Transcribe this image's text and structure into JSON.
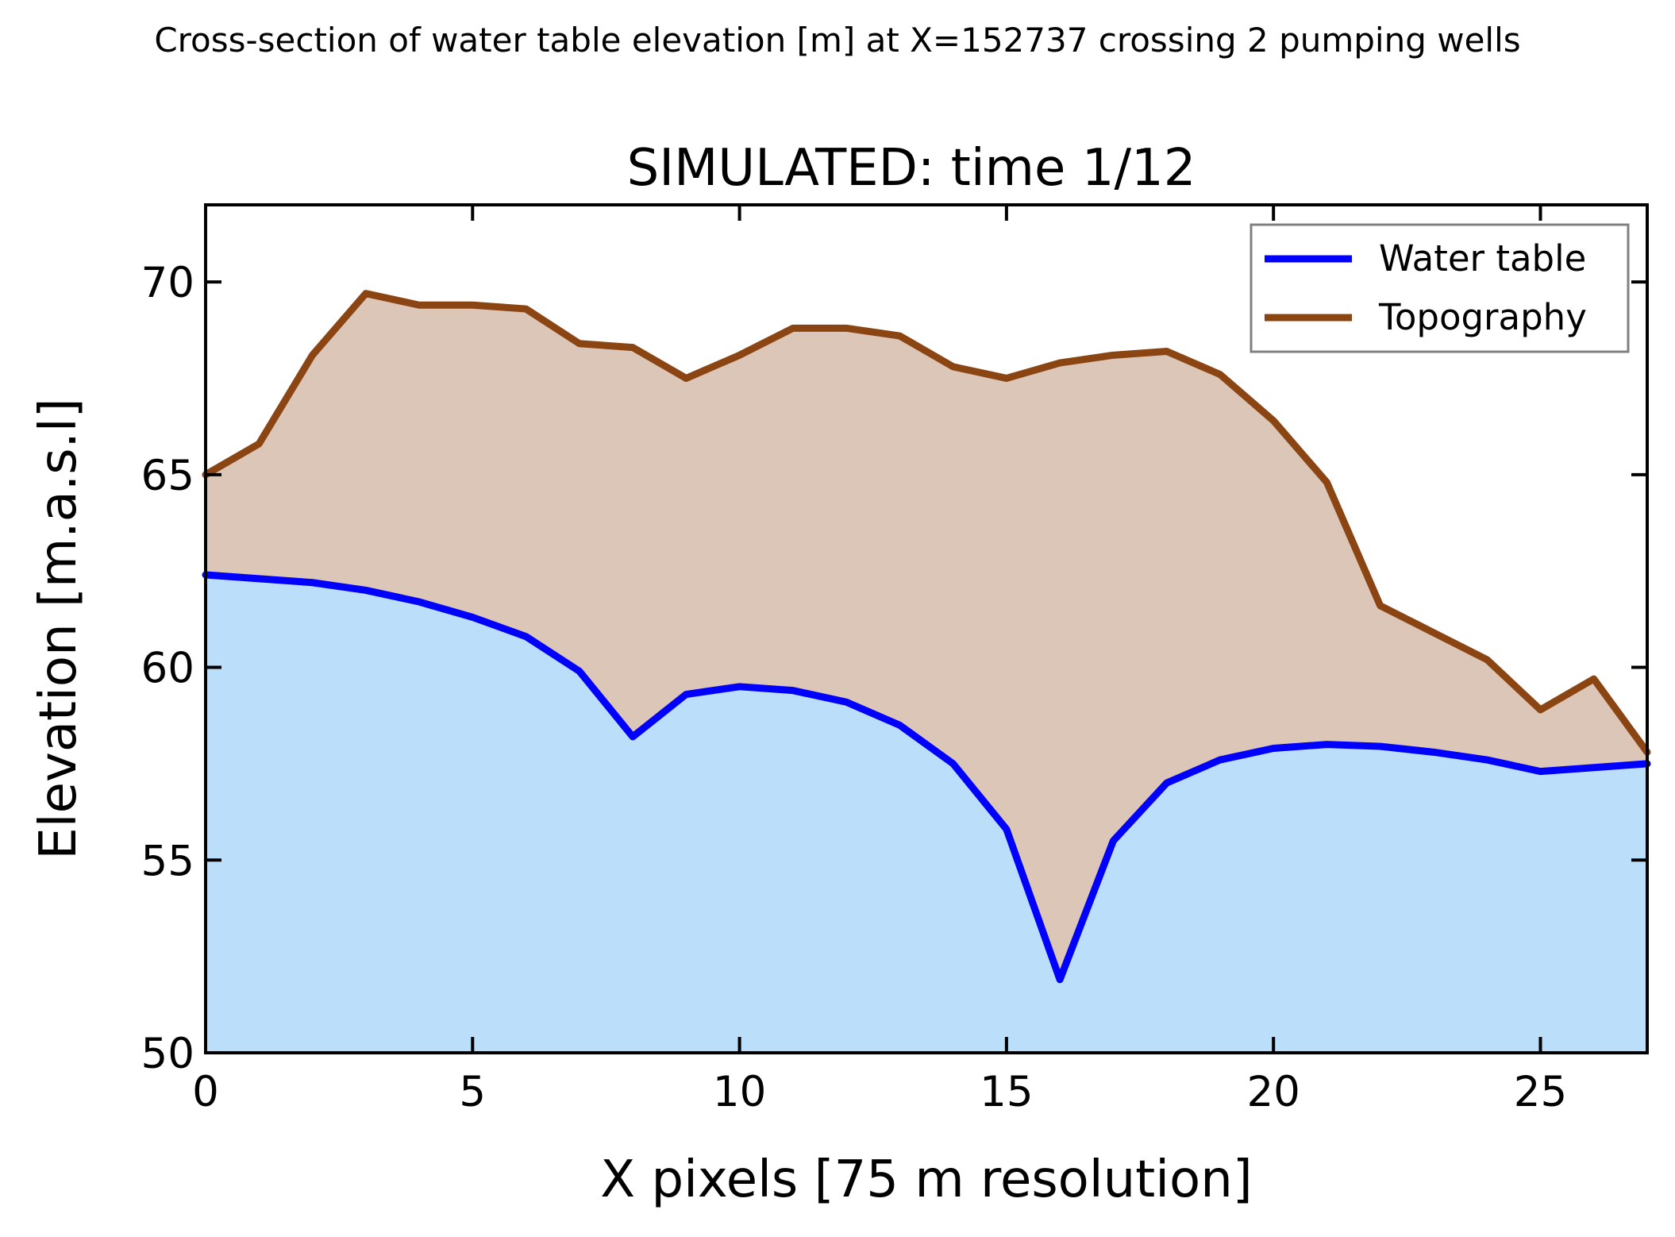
{
  "suptitle": "Cross-section of water table elevation [m] at X=152737 crossing 2 pumping wells",
  "chart_data": {
    "type": "line",
    "title": "SIMULATED: time 1/12",
    "xlabel": "X pixels [75 m resolution]",
    "ylabel": "Elevation [m.a.s.l]",
    "xlim": [
      0,
      27
    ],
    "ylim": [
      50,
      72
    ],
    "xticks": [
      0,
      5,
      10,
      15,
      20,
      25
    ],
    "yticks": [
      50,
      55,
      60,
      65,
      70
    ],
    "grid": false,
    "legend_position": "top-right",
    "x": [
      0,
      1,
      2,
      3,
      4,
      5,
      6,
      7,
      8,
      9,
      10,
      11,
      12,
      13,
      14,
      15,
      16,
      17,
      18,
      19,
      20,
      21,
      22,
      23,
      24,
      25,
      26,
      27
    ],
    "series": [
      {
        "name": "Water table",
        "color": "#0000ff",
        "fill_color": "#bbdefb",
        "values": [
          62.4,
          62.3,
          62.2,
          62.0,
          61.7,
          61.3,
          60.8,
          59.9,
          58.2,
          59.3,
          59.5,
          59.4,
          59.1,
          58.5,
          57.5,
          55.8,
          51.9,
          55.5,
          57.0,
          57.6,
          57.9,
          58.0,
          57.95,
          57.8,
          57.6,
          57.3,
          57.4,
          57.5
        ]
      },
      {
        "name": "Topography",
        "color": "#8b4513",
        "fill_color": "#dcc6b8",
        "values": [
          65.0,
          65.8,
          68.1,
          69.7,
          69.4,
          69.4,
          69.3,
          68.4,
          68.3,
          67.5,
          68.1,
          68.8,
          68.8,
          68.6,
          67.8,
          67.5,
          67.9,
          68.1,
          68.2,
          67.6,
          66.4,
          64.8,
          61.6,
          60.9,
          60.2,
          58.9,
          59.7,
          57.8
        ]
      }
    ]
  }
}
